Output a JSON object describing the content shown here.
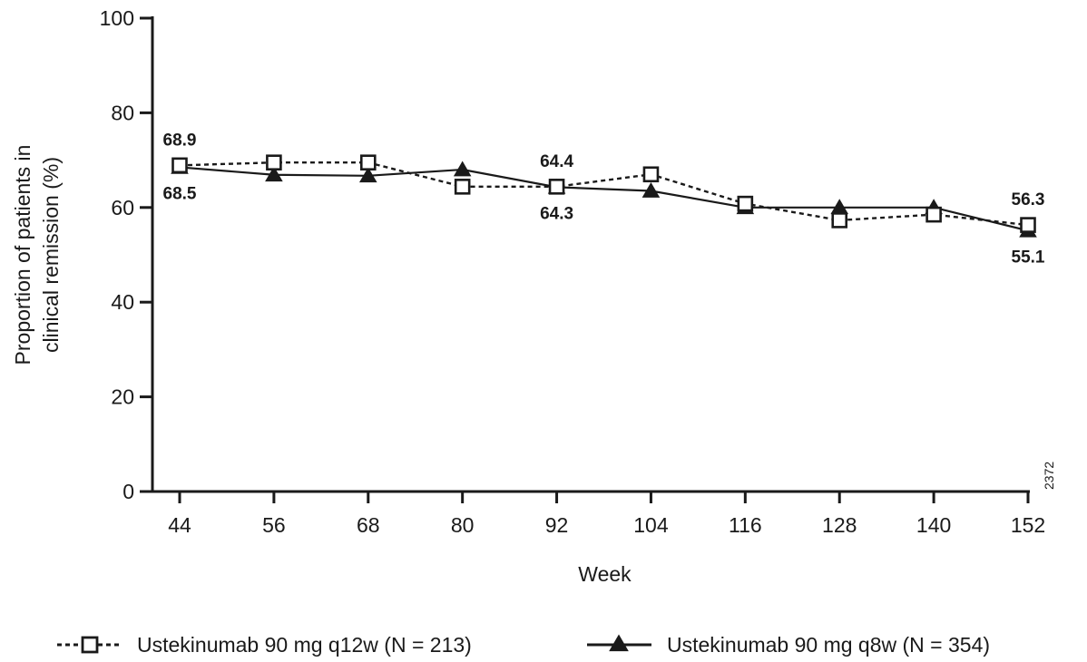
{
  "chart_data": {
    "type": "line",
    "x": [
      44,
      56,
      68,
      80,
      92,
      104,
      116,
      128,
      140,
      152
    ],
    "x_tick_labels": [
      "44",
      "56",
      "68",
      "80",
      "92",
      "104",
      "116",
      "128",
      "140",
      "152"
    ],
    "xlabel": "Week",
    "ylabel_line1": "Proportion of patients in",
    "ylabel_line2": "clinical remission (%)",
    "ylim": [
      0,
      100
    ],
    "y_ticks": [
      0,
      20,
      40,
      60,
      80,
      100
    ],
    "y_tick_labels": [
      "0",
      "20",
      "40",
      "60",
      "80",
      "100"
    ],
    "grid": false,
    "legend_position": "bottom",
    "series": [
      {
        "name": "Ustekinumab 90 mg q12w (N = 213)",
        "marker": "open-square",
        "line_style": "dashed",
        "color": "#1a1a1a",
        "values": [
          68.9,
          69.5,
          69.5,
          64.4,
          64.4,
          67.0,
          60.8,
          57.3,
          58.5,
          56.3
        ]
      },
      {
        "name": "Ustekinumab 90 mg q8w (N = 354)",
        "marker": "filled-triangle",
        "line_style": "solid",
        "color": "#1a1a1a",
        "values": [
          68.5,
          66.9,
          66.7,
          68.0,
          64.3,
          63.5,
          60.0,
          60.0,
          60.0,
          55.1
        ]
      }
    ],
    "annotations": [
      {
        "text": "68.9",
        "x": 44,
        "series": 0,
        "pos": "above"
      },
      {
        "text": "68.5",
        "x": 44,
        "series": 1,
        "pos": "below"
      },
      {
        "text": "64.4",
        "x": 92,
        "series": 0,
        "pos": "above"
      },
      {
        "text": "64.3",
        "x": 92,
        "series": 1,
        "pos": "below"
      },
      {
        "text": "56.3",
        "x": 152,
        "series": 0,
        "pos": "above"
      },
      {
        "text": "55.1",
        "x": 152,
        "series": 1,
        "pos": "below"
      }
    ],
    "figure_id": "2372"
  }
}
